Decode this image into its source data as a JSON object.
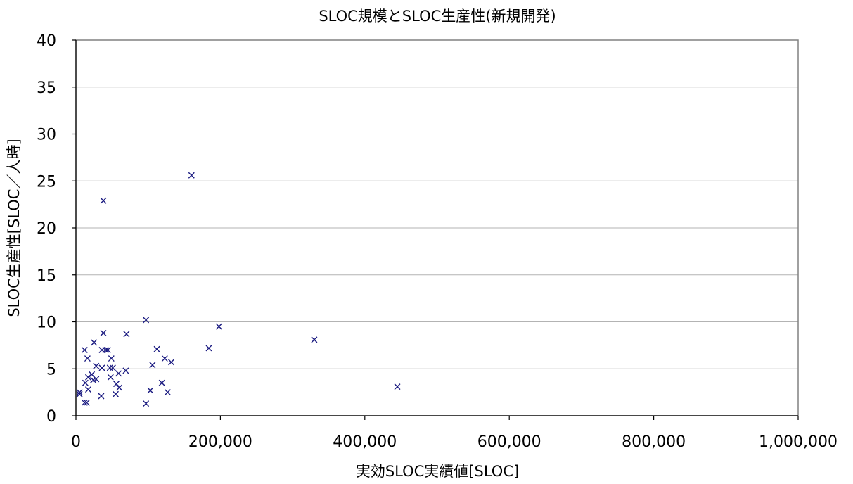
{
  "chart_data": {
    "type": "scatter",
    "title": "SLOC規模とSLOC生産性(新規開発)",
    "xlabel": "実効SLOC実績値[SLOC]",
    "ylabel": "SLOC生産性[SLOC／人時]",
    "xlim": [
      0,
      1000000
    ],
    "ylim": [
      0,
      40
    ],
    "x_ticks": [
      0,
      200000,
      400000,
      600000,
      800000,
      1000000
    ],
    "x_tick_labels": [
      "0",
      "200,000",
      "400,000",
      "600,000",
      "800,000",
      "1,000,000"
    ],
    "y_ticks": [
      0,
      5,
      10,
      15,
      20,
      25,
      30,
      35,
      40
    ],
    "y_tick_labels": [
      "0",
      "5",
      "10",
      "15",
      "20",
      "25",
      "30",
      "35",
      "40"
    ],
    "grid": "horizontal",
    "marker_color": "#1a1a80",
    "marker": "x",
    "points": [
      [
        160000,
        25.6
      ],
      [
        38000,
        22.9
      ],
      [
        97000,
        10.2
      ],
      [
        198000,
        9.5
      ],
      [
        38000,
        8.8
      ],
      [
        70000,
        8.7
      ],
      [
        330000,
        8.1
      ],
      [
        25000,
        7.8
      ],
      [
        184000,
        7.2
      ],
      [
        112000,
        7.1
      ],
      [
        12000,
        7.0
      ],
      [
        36000,
        7.0
      ],
      [
        41000,
        7.0
      ],
      [
        44000,
        7.0
      ],
      [
        16000,
        6.1
      ],
      [
        49000,
        6.1
      ],
      [
        123000,
        6.1
      ],
      [
        132000,
        5.7
      ],
      [
        106000,
        5.4
      ],
      [
        28000,
        5.3
      ],
      [
        36000,
        5.1
      ],
      [
        47000,
        5.1
      ],
      [
        51000,
        5.1
      ],
      [
        69000,
        4.8
      ],
      [
        59000,
        4.5
      ],
      [
        22000,
        4.4
      ],
      [
        17000,
        4.1
      ],
      [
        48000,
        4.1
      ],
      [
        28000,
        3.9
      ],
      [
        24000,
        3.8
      ],
      [
        13000,
        3.5
      ],
      [
        119000,
        3.5
      ],
      [
        56000,
        3.4
      ],
      [
        60000,
        3.0
      ],
      [
        445000,
        3.1
      ],
      [
        17000,
        2.8
      ],
      [
        103000,
        2.7
      ],
      [
        127000,
        2.5
      ],
      [
        5000,
        2.5
      ],
      [
        5000,
        2.3
      ],
      [
        55000,
        2.3
      ],
      [
        35000,
        2.1
      ],
      [
        12000,
        1.4
      ],
      [
        15000,
        1.4
      ],
      [
        97000,
        1.3
      ]
    ]
  }
}
